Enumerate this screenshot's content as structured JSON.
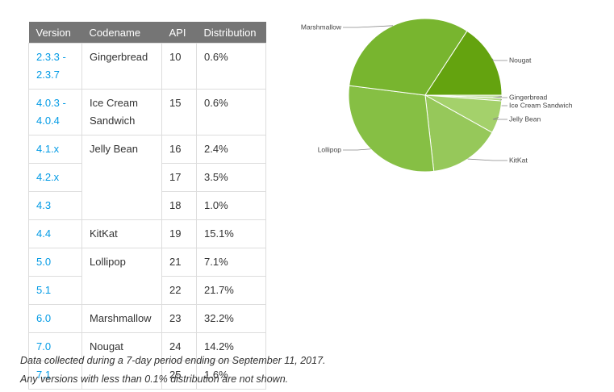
{
  "table": {
    "header": [
      "Version",
      "Codename",
      "API",
      "Distribution"
    ],
    "rows": [
      [
        "2.3.3 - 2.3.7",
        "Gingerbread",
        "10",
        "0.6%"
      ],
      [
        "4.0.3 - 4.0.4",
        "Ice Cream Sandwich",
        "15",
        "0.6%"
      ],
      [
        "4.1.x",
        "Jelly Bean",
        "16",
        "2.4%"
      ],
      [
        "4.2.x",
        "17",
        "3.5%"
      ],
      [
        "4.3",
        "18",
        "1.0%"
      ],
      [
        "4.4",
        "KitKat",
        "19",
        "15.1%"
      ],
      [
        "5.0",
        "Lollipop",
        "21",
        "7.1%"
      ],
      [
        "5.1",
        "22",
        "21.7%"
      ],
      [
        "6.0",
        "Marshmallow",
        "23",
        "32.2%"
      ],
      [
        "7.0",
        "Nougat",
        "24",
        "14.2%"
      ],
      [
        "7.1",
        "25",
        "1.6%"
      ]
    ]
  },
  "notes": [
    "Data collected during a 7-day period ending on September 11, 2017.",
    "Any versions with less than 0.1% distribution are not shown."
  ],
  "chart_data": {
    "type": "pie",
    "categories": [
      "Gingerbread",
      "Ice Cream Sandwich",
      "Jelly Bean",
      "KitKat",
      "Lollipop",
      "Marshmallow",
      "Nougat"
    ],
    "values": [
      0.6,
      0.6,
      6.9,
      15.1,
      28.8,
      32.2,
      15.8
    ],
    "colors": [
      "#c5e1a5",
      "#b5d98a",
      "#a4d16b",
      "#96c85a",
      "#86bf44",
      "#78b52f",
      "#64a30f"
    ]
  }
}
